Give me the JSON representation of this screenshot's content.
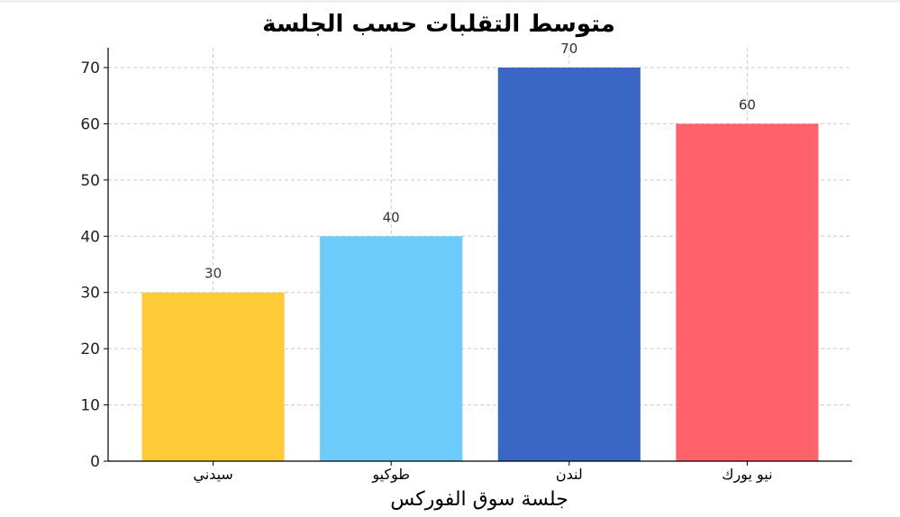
{
  "chart_data": {
    "type": "bar",
    "title": "متوسط التقلبات حسب الجلسة",
    "xlabel": "جلسة سوق الفوركس",
    "ylabel": "",
    "categories": [
      "سيدني",
      "طوكيو",
      "لندن",
      "نيو يورك"
    ],
    "values": [
      30,
      40,
      70,
      60
    ],
    "colors": [
      "#FDCB35",
      "#6DCBFC",
      "#3A67C6",
      "#FF626A"
    ],
    "ylim": [
      0,
      70
    ],
    "yticks": [
      0,
      10,
      20,
      30,
      40,
      50,
      60,
      70
    ],
    "grid": true,
    "data_labels": true
  }
}
